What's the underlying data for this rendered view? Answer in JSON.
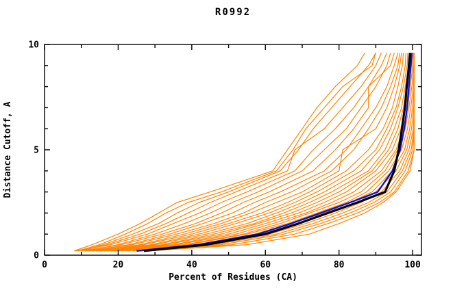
{
  "chart": {
    "title": "R0992",
    "xlabel": "Percent of Residues (CA)",
    "ylabel": "Distance Cutoff, A"
  },
  "chart_data": {
    "type": "line",
    "title": "R0992",
    "xlabel": "Percent of Residues (CA)",
    "ylabel": "Distance Cutoff, A",
    "x_axis": {
      "range": [
        0,
        102.4
      ],
      "ticks_major": [
        0,
        20,
        40,
        60,
        80,
        100
      ],
      "ticks_minor": [
        10,
        30,
        50,
        70,
        90
      ]
    },
    "y_axis": {
      "range": [
        0,
        10
      ],
      "ticks_major": [
        0,
        5,
        10
      ],
      "ticks_minor": [
        1,
        2,
        3,
        4,
        6,
        7,
        8,
        9
      ]
    },
    "grid": false,
    "legend": "none",
    "colors": {
      "models": "#ff8300",
      "highlight": "#1010e0",
      "reference": "#000000"
    },
    "cutoffs": [
      0.2,
      0.5,
      1.0,
      1.5,
      2.0,
      2.5,
      3.0,
      4.0,
      5.0,
      6.0,
      7.0,
      8.0,
      9.0,
      9.6
    ],
    "series": [
      {
        "name": "line-01",
        "color": "#ff8300",
        "width": 1.2,
        "percents": [
          8,
          13,
          20,
          26,
          31,
          36,
          45,
          62,
          66,
          70,
          74,
          79,
          85,
          87
        ]
      },
      {
        "name": "line-02",
        "color": "#ff8300",
        "width": 1.2,
        "percents": [
          9,
          15,
          22,
          28,
          33,
          39,
          48,
          63,
          67.5,
          71,
          76,
          81,
          89,
          90
        ]
      },
      {
        "name": "line-03",
        "color": "#ff8300",
        "width": 1.2,
        "percents": [
          8.5,
          16,
          24,
          31,
          36,
          42,
          50,
          64,
          69,
          73,
          78,
          83,
          88,
          90
        ]
      },
      {
        "name": "line-04",
        "color": "#ff8300",
        "width": 1.2,
        "percents": [
          10,
          17,
          26,
          33,
          39,
          45,
          52,
          66,
          68,
          76,
          81,
          86,
          90,
          91.5
        ]
      },
      {
        "name": "line-05",
        "color": "#ff8300",
        "width": 1.2,
        "percents": [
          9,
          18,
          28,
          35,
          42,
          48,
          55,
          68,
          73,
          79,
          84,
          88,
          91.5,
          93
        ]
      },
      {
        "name": "line-06",
        "color": "#ff8300",
        "width": 1.2,
        "percents": [
          11,
          20,
          30,
          38,
          45,
          51,
          58,
          70,
          76,
          82,
          86,
          90,
          93,
          94
        ]
      },
      {
        "name": "line-07",
        "color": "#ff8300",
        "width": 1.2,
        "percents": [
          10,
          21,
          32,
          41,
          48,
          54,
          61,
          73,
          79,
          84,
          88,
          88,
          94,
          95
        ]
      },
      {
        "name": "line-08",
        "color": "#ff8300",
        "width": 1.2,
        "percents": [
          12,
          23,
          34,
          43,
          51,
          57,
          64,
          76,
          82,
          86,
          90,
          93,
          95,
          96
        ]
      },
      {
        "name": "line-09",
        "color": "#ff8300",
        "width": 1.2,
        "percents": [
          11,
          24,
          36,
          46,
          54,
          60,
          67,
          78,
          84,
          88,
          91.5,
          94,
          96,
          96.5
        ]
      },
      {
        "name": "line-10",
        "color": "#ff8300",
        "width": 1.2,
        "percents": [
          13,
          26,
          38,
          48,
          56,
          63,
          70,
          80,
          81,
          90,
          93,
          95,
          96.5,
          97
        ]
      },
      {
        "name": "line-11",
        "color": "#ff8300",
        "width": 1.2,
        "percents": [
          12,
          27,
          40,
          50,
          59,
          66,
          72,
          82,
          88,
          92,
          94.5,
          96,
          97.2,
          97.5
        ]
      },
      {
        "name": "line-12",
        "color": "#ff8300",
        "width": 1.2,
        "percents": [
          14,
          29,
          42,
          52,
          61,
          68,
          74,
          84,
          90,
          93,
          95.5,
          97,
          98,
          98.2
        ]
      },
      {
        "name": "line-13",
        "color": "#ff8300",
        "width": 1.2,
        "percents": [
          13,
          30,
          44,
          55,
          63,
          70,
          76,
          86,
          91,
          94,
          96,
          97.5,
          98.5,
          98.7
        ]
      },
      {
        "name": "line-14",
        "color": "#ff8300",
        "width": 1.2,
        "percents": [
          15,
          32,
          46,
          57,
          65,
          72,
          78,
          88,
          92.5,
          95,
          97,
          98,
          99,
          99.2
        ]
      },
      {
        "name": "line-15",
        "color": "#ff8300",
        "width": 1.2,
        "percents": [
          14,
          33,
          48,
          58,
          67,
          74,
          80,
          89,
          93.5,
          96,
          97.5,
          98.5,
          99.3,
          99.5
        ]
      },
      {
        "name": "line-16",
        "color": "#ff8300",
        "width": 1.2,
        "percents": [
          16,
          35,
          50,
          60,
          69,
          76,
          82,
          90,
          94.5,
          96.8,
          98,
          99,
          99.7,
          99.9
        ]
      },
      {
        "name": "line-17",
        "color": "#ff8300",
        "width": 1.2,
        "percents": [
          15,
          36,
          52,
          62,
          71,
          78,
          84,
          91.5,
          95.5,
          97.5,
          98.6,
          99.4,
          100,
          100.2
        ]
      },
      {
        "name": "line-18",
        "color": "#ff8300",
        "width": 1.2,
        "percents": [
          17,
          38,
          54,
          64,
          72,
          80,
          86,
          92.5,
          96,
          98,
          99,
          99.8,
          100.3,
          100.4
        ]
      },
      {
        "name": "line-19",
        "color": "#ff8300",
        "width": 1.2,
        "percents": [
          16,
          39,
          55,
          66,
          74,
          82,
          87.5,
          93.5,
          97,
          98.6,
          99.5,
          100.2,
          100.4,
          100.4
        ]
      },
      {
        "name": "line-20",
        "color": "#ff8300",
        "width": 1.2,
        "percents": [
          18,
          41,
          57,
          67,
          76,
          83,
          89,
          94.5,
          97.8,
          99.2,
          100,
          100.4,
          100.4,
          100.4
        ]
      },
      {
        "name": "line-21",
        "color": "#ff8300",
        "width": 1.2,
        "percents": [
          17,
          42,
          59,
          69,
          77,
          85,
          90,
          95.5,
          98.4,
          99.7,
          100.3,
          100.4,
          100.4,
          100.4
        ]
      },
      {
        "name": "line-22",
        "color": "#ff8300",
        "width": 1.2,
        "percents": [
          19,
          44,
          61,
          71,
          79,
          86,
          91.5,
          96.5,
          99,
          100.2,
          100.4,
          100.4,
          100.4,
          100.4
        ]
      },
      {
        "name": "line-23",
        "color": "#ff8300",
        "width": 1.2,
        "percents": [
          20,
          46,
          63,
          73,
          81,
          88,
          93,
          97.2,
          99.6,
          100.4,
          100.4,
          100.4,
          100.4,
          100.4
        ]
      },
      {
        "name": "line-24",
        "color": "#ff8300",
        "width": 1.2,
        "percents": [
          22,
          48,
          65,
          75,
          83,
          89.5,
          94,
          98,
          100,
          100.4,
          100.4,
          100.4,
          100.4,
          100.4
        ]
      },
      {
        "name": "line-25",
        "color": "#ff8300",
        "width": 1.2,
        "percents": [
          24,
          51,
          68,
          77,
          85,
          91,
          95,
          98.8,
          100.4,
          100.4,
          100.4,
          100.4,
          100.4,
          100.4
        ]
      },
      {
        "name": "line-26",
        "color": "#ff8300",
        "width": 1.2,
        "percents": [
          28,
          55,
          72,
          80,
          87,
          92,
          95.5,
          99.3,
          100.4,
          100.4,
          100.4,
          100.4,
          100.4,
          100.4
        ]
      },
      {
        "name": "line-blue",
        "color": "#1010e0",
        "width": 2.4,
        "percents": [
          25,
          42,
          58,
          67,
          75,
          83,
          90.5,
          94.5,
          96.6,
          97.7,
          98.5,
          99,
          99.5,
          99.8
        ]
      },
      {
        "name": "line-black",
        "color": "#000000",
        "width": 3.2,
        "percents": [
          27,
          44,
          60,
          69,
          77,
          85,
          92.5,
          95,
          96.2,
          97.1,
          97.9,
          98.4,
          99,
          99.3
        ]
      }
    ]
  }
}
